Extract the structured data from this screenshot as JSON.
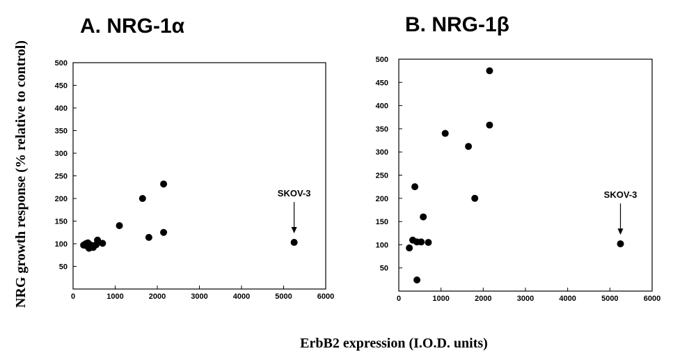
{
  "figure": {
    "ylabel": "NRG  growth response (% relative to control)",
    "xlabel": "ErbB2  expression (I.O.D. units)"
  },
  "chart_data": [
    {
      "type": "scatter",
      "title": "A. NRG-1α",
      "xlim": [
        0,
        6000
      ],
      "ylim": [
        0,
        500
      ],
      "xticks": [
        0,
        1000,
        2000,
        3000,
        4000,
        5000,
        6000
      ],
      "yticks": [
        50,
        100,
        150,
        200,
        250,
        300,
        350,
        400,
        450,
        500
      ],
      "points": [
        {
          "x": 250,
          "y": 97
        },
        {
          "x": 300,
          "y": 100
        },
        {
          "x": 330,
          "y": 95
        },
        {
          "x": 350,
          "y": 102
        },
        {
          "x": 380,
          "y": 90
        },
        {
          "x": 400,
          "y": 98
        },
        {
          "x": 450,
          "y": 96
        },
        {
          "x": 480,
          "y": 92
        },
        {
          "x": 550,
          "y": 98
        },
        {
          "x": 580,
          "y": 108
        },
        {
          "x": 700,
          "y": 101
        },
        {
          "x": 1100,
          "y": 140
        },
        {
          "x": 1650,
          "y": 200
        },
        {
          "x": 1800,
          "y": 114
        },
        {
          "x": 2150,
          "y": 125
        },
        {
          "x": 2150,
          "y": 232
        },
        {
          "x": 5250,
          "y": 103
        }
      ],
      "annotation": {
        "text": "SKOV-3",
        "x": 5250,
        "y": 103
      }
    },
    {
      "type": "scatter",
      "title": "B. NRG-1β",
      "xlim": [
        0,
        6000
      ],
      "ylim": [
        0,
        500
      ],
      "xticks": [
        0,
        1000,
        2000,
        3000,
        4000,
        5000,
        6000
      ],
      "yticks": [
        50,
        100,
        150,
        200,
        250,
        300,
        350,
        400,
        450,
        500
      ],
      "points": [
        {
          "x": 250,
          "y": 93
        },
        {
          "x": 330,
          "y": 110
        },
        {
          "x": 380,
          "y": 225
        },
        {
          "x": 430,
          "y": 106
        },
        {
          "x": 430,
          "y": 24
        },
        {
          "x": 530,
          "y": 106
        },
        {
          "x": 580,
          "y": 160
        },
        {
          "x": 700,
          "y": 105
        },
        {
          "x": 1100,
          "y": 340
        },
        {
          "x": 1650,
          "y": 312
        },
        {
          "x": 1800,
          "y": 200
        },
        {
          "x": 2150,
          "y": 358
        },
        {
          "x": 2150,
          "y": 475
        },
        {
          "x": 5250,
          "y": 102
        }
      ],
      "annotation": {
        "text": "SKOV-3",
        "x": 5250,
        "y": 102
      }
    }
  ]
}
